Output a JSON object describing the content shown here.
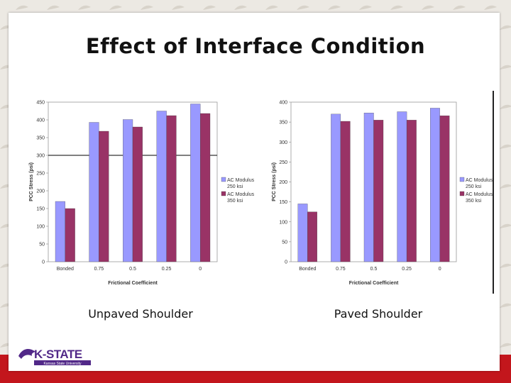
{
  "slide": {
    "title": "Effect of Interface Condition",
    "left_caption": "Unpaved Shoulder",
    "right_caption": "Paved Shoulder",
    "logo_text": "K-STATE",
    "logo_subtext": "Kansas State University"
  },
  "colors": {
    "series1": "#9999ff",
    "series2": "#993366",
    "band": "#c3161c",
    "logo": "#512888"
  },
  "chart_data": [
    {
      "type": "bar",
      "title": "",
      "xlabel": "Frictional Coefficient",
      "ylabel": "PCC Stress (psi)",
      "categories": [
        "Bonded",
        "0.75",
        "0.5",
        "0.25",
        "0"
      ],
      "ylim": [
        0,
        450
      ],
      "yticks": [
        0,
        50,
        100,
        150,
        200,
        250,
        300,
        350,
        400,
        450
      ],
      "ytick_labels": [
        "0",
        "50",
        "100",
        "150",
        "200",
        "250",
        "300",
        "350",
        "400",
        "450"
      ],
      "reference_line": 300,
      "legend_position": "right",
      "series": [
        {
          "name": "AC Modulus 250 ksi",
          "legend_lines": [
            "AC Modulus",
            "250 ksi"
          ],
          "values": [
            170,
            393,
            401,
            425,
            445
          ]
        },
        {
          "name": "AC Modulus 350 ksi",
          "legend_lines": [
            "AC Modulus",
            "350 ksi"
          ],
          "values": [
            150,
            368,
            380,
            412,
            418
          ]
        }
      ]
    },
    {
      "type": "bar",
      "title": "",
      "xlabel": "Frictional Coefficient",
      "ylabel": "PCC Stress (psi)",
      "categories": [
        "Bonded",
        "0.75",
        "0.5",
        "0.25",
        "0"
      ],
      "ylim": [
        0,
        400
      ],
      "yticks": [
        0,
        50,
        100,
        150,
        200,
        250,
        300,
        350,
        400
      ],
      "ytick_labels": [
        "0",
        "50",
        "100",
        "150",
        "200",
        "250",
        "300",
        "350",
        "400"
      ],
      "reference_line": null,
      "legend_position": "right",
      "series": [
        {
          "name": "AC Modulus 250 ksi",
          "legend_lines": [
            "AC Modulus",
            "250 ksi"
          ],
          "values": [
            145,
            370,
            373,
            376,
            385
          ]
        },
        {
          "name": "AC Modulus 350 ksi",
          "legend_lines": [
            "AC Modulus",
            "350 ksi"
          ],
          "values": [
            125,
            352,
            355,
            355,
            366
          ]
        }
      ]
    }
  ]
}
